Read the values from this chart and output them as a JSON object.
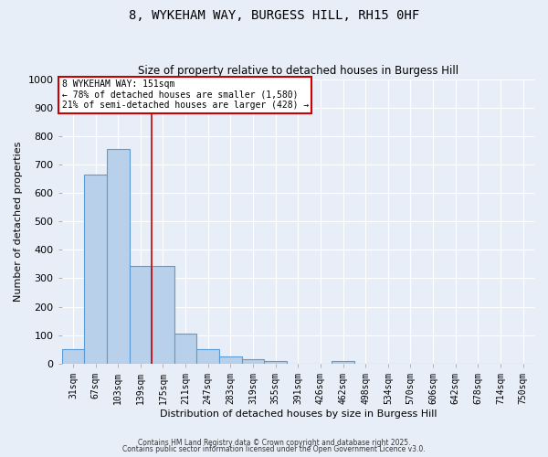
{
  "title1": "8, WYKEHAM WAY, BURGESS HILL, RH15 0HF",
  "title2": "Size of property relative to detached houses in Burgess Hill",
  "xlabel": "Distribution of detached houses by size in Burgess Hill",
  "ylabel": "Number of detached properties",
  "bar_labels": [
    "31sqm",
    "67sqm",
    "103sqm",
    "139sqm",
    "175sqm",
    "211sqm",
    "247sqm",
    "283sqm",
    "319sqm",
    "355sqm",
    "391sqm",
    "426sqm",
    "462sqm",
    "498sqm",
    "534sqm",
    "570sqm",
    "606sqm",
    "642sqm",
    "678sqm",
    "714sqm",
    "750sqm"
  ],
  "bar_values": [
    50,
    665,
    755,
    345,
    345,
    105,
    50,
    25,
    15,
    10,
    0,
    0,
    10,
    0,
    0,
    0,
    0,
    0,
    0,
    0,
    0
  ],
  "bar_color": "#b8d0ea",
  "bar_edge_color": "#5b9bd5",
  "ylim": [
    0,
    1000
  ],
  "yticks": [
    0,
    100,
    200,
    300,
    400,
    500,
    600,
    700,
    800,
    900,
    1000
  ],
  "vline_x_index": 3.5,
  "vline_color": "#cc0000",
  "annotation_text": "8 WYKEHAM WAY: 151sqm\n← 78% of detached houses are smaller (1,580)\n21% of semi-detached houses are larger (428) →",
  "annotation_box_color": "#cc0000",
  "bg_color": "#e8eef8",
  "grid_color": "#ffffff",
  "footnote1": "Contains HM Land Registry data © Crown copyright and database right 2025.",
  "footnote2": "Contains public sector information licensed under the Open Government Licence v3.0."
}
